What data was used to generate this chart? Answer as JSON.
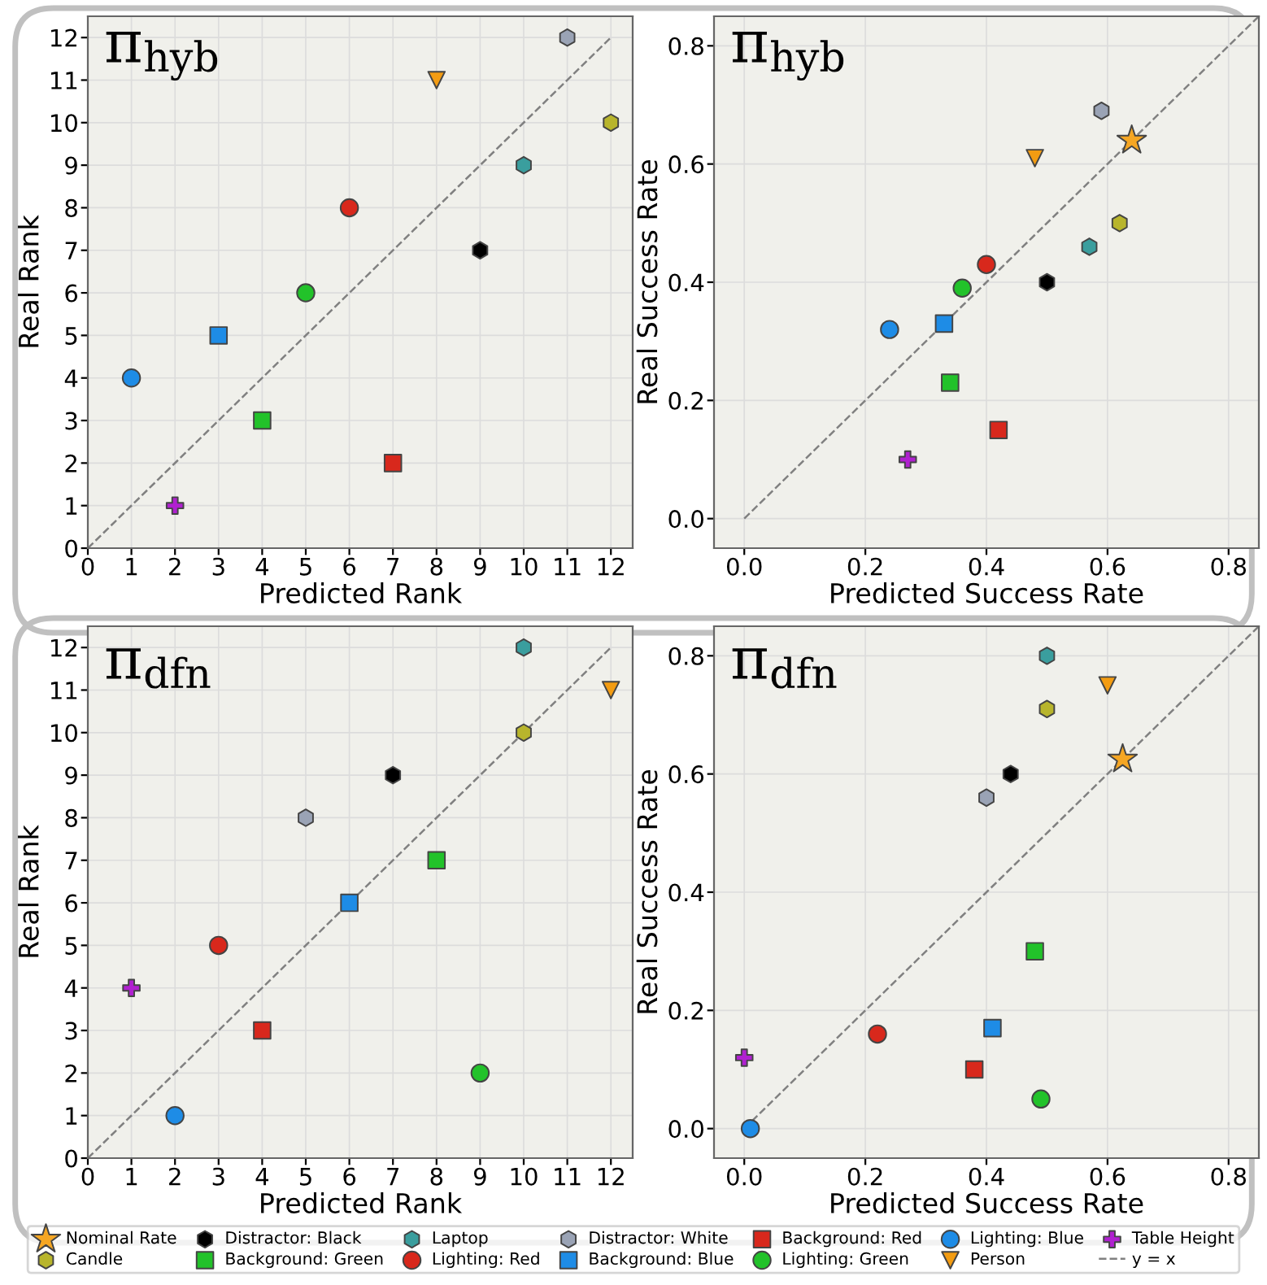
{
  "chart_data": [
    {
      "type": "scatter",
      "title": "π$_{hyb}$",
      "xlabel": "Predicted Rank",
      "ylabel": "Real Rank",
      "xlim": [
        0,
        12.5
      ],
      "ylim": [
        0,
        12.5
      ],
      "xticks": [
        0,
        1,
        2,
        3,
        4,
        5,
        6,
        7,
        8,
        9,
        10,
        11,
        12
      ],
      "yticks": [
        0,
        1,
        2,
        3,
        4,
        5,
        6,
        7,
        8,
        9,
        10,
        11,
        12
      ],
      "grid": true,
      "legend": "bottom",
      "series": [
        {
          "name": "Candle",
          "color": "#b8b52c",
          "x": [
            12
          ],
          "values": [
            10
          ]
        },
        {
          "name": "Distractor: Black",
          "color": "#000000",
          "x": [
            9
          ],
          "values": [
            7
          ]
        },
        {
          "name": "Background: Green",
          "color": "#22c22a",
          "marker": "square",
          "x": [
            4
          ],
          "values": [
            3
          ]
        },
        {
          "name": "Laptop",
          "color": "#3a9e9e",
          "x": [
            10
          ],
          "values": [
            9
          ]
        },
        {
          "name": "Lighting: Red",
          "color": "#d8281c",
          "marker": "circle",
          "x": [
            6
          ],
          "values": [
            8
          ]
        },
        {
          "name": "Distractor: White",
          "color": "#9aa3b5",
          "x": [
            11
          ],
          "values": [
            12
          ]
        },
        {
          "name": "Background: Blue",
          "color": "#1e8ce6",
          "marker": "square",
          "x": [
            3
          ],
          "values": [
            5
          ]
        },
        {
          "name": "Background: Red",
          "color": "#d8281c",
          "marker": "square",
          "x": [
            7
          ],
          "values": [
            2
          ]
        },
        {
          "name": "Lighting: Green",
          "color": "#22c22a",
          "marker": "circle",
          "x": [
            5
          ],
          "values": [
            6
          ]
        },
        {
          "name": "Lighting: Blue",
          "color": "#1e8ce6",
          "marker": "circle",
          "x": [
            1
          ],
          "values": [
            4
          ]
        },
        {
          "name": "Person",
          "color": "#f39c12",
          "marker": "triangle_down",
          "x": [
            8
          ],
          "values": [
            11
          ]
        },
        {
          "name": "Table Height",
          "color": "#b020d0",
          "marker": "cross",
          "x": [
            2
          ],
          "values": [
            1
          ]
        },
        {
          "name": "y = x",
          "type": "line",
          "color": "#808080",
          "line_style": "dashed",
          "x": [
            0,
            12
          ],
          "values": [
            0,
            12
          ]
        }
      ]
    },
    {
      "type": "scatter",
      "title": "π$_{hyb}$",
      "xlabel": "Predicted Success Rate",
      "ylabel": "Real Success Rate",
      "xlim": [
        -0.05,
        0.85
      ],
      "ylim": [
        -0.05,
        0.85
      ],
      "xticks": [
        {
          "value": 0,
          "label": "0.0"
        },
        {
          "value": 0.2,
          "label": "0.2"
        },
        {
          "value": 0.4,
          "label": "0.4"
        },
        {
          "value": 0.6,
          "label": "0.6"
        },
        {
          "value": 0.8,
          "label": "0.8"
        }
      ],
      "yticks": [
        {
          "value": 0,
          "label": "0.0"
        },
        {
          "value": 0.2,
          "label": "0.2"
        },
        {
          "value": 0.4,
          "label": "0.4"
        },
        {
          "value": 0.6,
          "label": "0.6"
        },
        {
          "value": 0.8,
          "label": "0.8"
        }
      ],
      "grid": true,
      "legend": "bottom",
      "series": [
        {
          "name": "Nominal Rate",
          "color": "#f5a623",
          "marker": "star",
          "x": [
            0.64
          ],
          "values": [
            0.64
          ]
        },
        {
          "name": "Candle",
          "color": "#b8b52c",
          "x": [
            0.62
          ],
          "values": [
            0.5
          ]
        },
        {
          "name": "Distractor: Black",
          "color": "#000000",
          "x": [
            0.5
          ],
          "values": [
            0.4
          ]
        },
        {
          "name": "Background: Green",
          "color": "#22c22a",
          "marker": "square",
          "x": [
            0.34
          ],
          "values": [
            0.23
          ]
        },
        {
          "name": "Laptop",
          "color": "#3a9e9e",
          "x": [
            0.57
          ],
          "values": [
            0.46
          ]
        },
        {
          "name": "Lighting: Red",
          "color": "#d8281c",
          "marker": "circle",
          "x": [
            0.4
          ],
          "values": [
            0.43
          ]
        },
        {
          "name": "Distractor: White",
          "color": "#9aa3b5",
          "x": [
            0.59
          ],
          "values": [
            0.69
          ]
        },
        {
          "name": "Background: Blue",
          "color": "#1e8ce6",
          "marker": "square",
          "x": [
            0.33
          ],
          "values": [
            0.33
          ]
        },
        {
          "name": "Background: Red",
          "color": "#d8281c",
          "marker": "square",
          "x": [
            0.42
          ],
          "values": [
            0.15
          ]
        },
        {
          "name": "Lighting: Green",
          "color": "#22c22a",
          "marker": "circle",
          "x": [
            0.36
          ],
          "values": [
            0.39
          ]
        },
        {
          "name": "Lighting: Blue",
          "color": "#1e8ce6",
          "marker": "circle",
          "x": [
            0.24
          ],
          "values": [
            0.32
          ]
        },
        {
          "name": "Person",
          "color": "#f39c12",
          "marker": "triangle_down",
          "x": [
            0.48
          ],
          "values": [
            0.61
          ]
        },
        {
          "name": "Table Height",
          "color": "#b020d0",
          "marker": "cross",
          "x": [
            0.27
          ],
          "values": [
            0.1
          ]
        },
        {
          "name": "y = x",
          "type": "line",
          "color": "#808080",
          "line_style": "dashed",
          "x": [
            0,
            0.85
          ],
          "values": [
            0,
            0.85
          ]
        }
      ]
    },
    {
      "type": "scatter",
      "title": "π$_{dfn}$",
      "xlabel": "Predicted Rank",
      "ylabel": "Real Rank",
      "xlim": [
        0,
        12.5
      ],
      "ylim": [
        0,
        12.5
      ],
      "xticks": [
        0,
        1,
        2,
        3,
        4,
        5,
        6,
        7,
        8,
        9,
        10,
        11,
        12
      ],
      "yticks": [
        0,
        1,
        2,
        3,
        4,
        5,
        6,
        7,
        8,
        9,
        10,
        11,
        12
      ],
      "grid": true,
      "legend": "bottom",
      "series": [
        {
          "name": "Candle",
          "color": "#b8b52c",
          "x": [
            10
          ],
          "values": [
            10
          ]
        },
        {
          "name": "Distractor: Black",
          "color": "#000000",
          "x": [
            7
          ],
          "values": [
            9
          ]
        },
        {
          "name": "Background: Green",
          "color": "#22c22a",
          "marker": "square",
          "x": [
            8
          ],
          "values": [
            7
          ]
        },
        {
          "name": "Laptop",
          "color": "#3a9e9e",
          "x": [
            10
          ],
          "values": [
            12
          ]
        },
        {
          "name": "Lighting: Red",
          "color": "#d8281c",
          "marker": "circle",
          "x": [
            3
          ],
          "values": [
            5
          ]
        },
        {
          "name": "Distractor: White",
          "color": "#9aa3b5",
          "x": [
            5
          ],
          "values": [
            8
          ]
        },
        {
          "name": "Background: Blue",
          "color": "#1e8ce6",
          "marker": "square",
          "x": [
            6
          ],
          "values": [
            6
          ]
        },
        {
          "name": "Background: Red",
          "color": "#d8281c",
          "marker": "square",
          "x": [
            4
          ],
          "values": [
            3
          ]
        },
        {
          "name": "Lighting: Green",
          "color": "#22c22a",
          "marker": "circle",
          "x": [
            9
          ],
          "values": [
            2
          ]
        },
        {
          "name": "Lighting: Blue",
          "color": "#1e8ce6",
          "marker": "circle",
          "x": [
            2
          ],
          "values": [
            1
          ]
        },
        {
          "name": "Person",
          "color": "#f39c12",
          "marker": "triangle_down",
          "x": [
            12
          ],
          "values": [
            11
          ]
        },
        {
          "name": "Table Height",
          "color": "#b020d0",
          "marker": "cross",
          "x": [
            1
          ],
          "values": [
            4
          ]
        },
        {
          "name": "y = x",
          "type": "line",
          "color": "#808080",
          "line_style": "dashed",
          "x": [
            0,
            12
          ],
          "values": [
            0,
            12
          ]
        }
      ]
    },
    {
      "type": "scatter",
      "title": "π$_{dfn}$",
      "xlabel": "Predicted Success Rate",
      "ylabel": "Real Success Rate",
      "xlim": [
        -0.05,
        0.85
      ],
      "ylim": [
        -0.05,
        0.85
      ],
      "xticks": [
        {
          "value": 0,
          "label": "0.0"
        },
        {
          "value": 0.2,
          "label": "0.2"
        },
        {
          "value": 0.4,
          "label": "0.4"
        },
        {
          "value": 0.6,
          "label": "0.6"
        },
        {
          "value": 0.8,
          "label": "0.8"
        }
      ],
      "yticks": [
        {
          "value": 0,
          "label": "0.0"
        },
        {
          "value": 0.2,
          "label": "0.2"
        },
        {
          "value": 0.4,
          "label": "0.4"
        },
        {
          "value": 0.6,
          "label": "0.6"
        },
        {
          "value": 0.8,
          "label": "0.8"
        }
      ],
      "grid": true,
      "legend": "bottom",
      "series": [
        {
          "name": "Nominal Rate",
          "color": "#f5a623",
          "marker": "star",
          "x": [
            0.625
          ],
          "values": [
            0.625
          ]
        },
        {
          "name": "Candle",
          "color": "#b8b52c",
          "x": [
            0.5
          ],
          "values": [
            0.71
          ]
        },
        {
          "name": "Distractor: Black",
          "color": "#000000",
          "x": [
            0.44
          ],
          "values": [
            0.6
          ]
        },
        {
          "name": "Background: Green",
          "color": "#22c22a",
          "marker": "square",
          "x": [
            0.48
          ],
          "values": [
            0.3
          ]
        },
        {
          "name": "Laptop",
          "color": "#3a9e9e",
          "x": [
            0.5
          ],
          "values": [
            0.8
          ]
        },
        {
          "name": "Lighting: Red",
          "color": "#d8281c",
          "marker": "circle",
          "x": [
            0.22
          ],
          "values": [
            0.16
          ]
        },
        {
          "name": "Distractor: White",
          "color": "#9aa3b5",
          "x": [
            0.4
          ],
          "values": [
            0.56
          ]
        },
        {
          "name": "Background: Blue",
          "color": "#1e8ce6",
          "marker": "square",
          "x": [
            0.41
          ],
          "values": [
            0.17
          ]
        },
        {
          "name": "Background: Red",
          "color": "#d8281c",
          "marker": "square",
          "x": [
            0.38
          ],
          "values": [
            0.1
          ]
        },
        {
          "name": "Lighting: Green",
          "color": "#22c22a",
          "marker": "circle",
          "x": [
            0.49
          ],
          "values": [
            0.05
          ]
        },
        {
          "name": "Lighting: Blue",
          "color": "#1e8ce6",
          "marker": "circle",
          "x": [
            0.01
          ],
          "values": [
            0.0
          ]
        },
        {
          "name": "Person",
          "color": "#f39c12",
          "marker": "triangle_down",
          "x": [
            0.6
          ],
          "values": [
            0.75
          ]
        },
        {
          "name": "Table Height",
          "color": "#b020d0",
          "marker": "cross",
          "x": [
            0.0
          ],
          "values": [
            0.12
          ]
        },
        {
          "name": "y = x",
          "type": "line",
          "color": "#808080",
          "line_style": "dashed",
          "x": [
            0,
            0.85
          ],
          "values": [
            0,
            0.85
          ]
        }
      ]
    }
  ]
}
